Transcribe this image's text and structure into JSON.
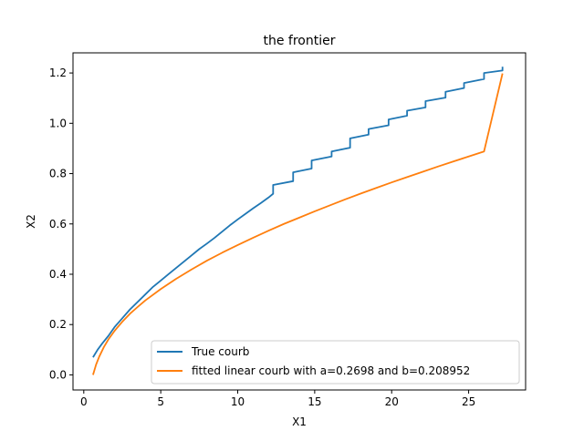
{
  "chart_data": {
    "type": "line",
    "title": "the frontier",
    "xlabel": "X1",
    "ylabel": "X2",
    "xlim": [
      -0.7,
      28.7
    ],
    "ylim": [
      -0.06,
      1.28
    ],
    "xticks": [
      0,
      5,
      10,
      15,
      20,
      25
    ],
    "yticks": [
      0.0,
      0.2,
      0.4,
      0.6,
      0.8,
      1.0,
      1.2
    ],
    "xtick_labels": [
      "0",
      "5",
      "10",
      "15",
      "20",
      "25"
    ],
    "ytick_labels": [
      "0.0",
      "0.2",
      "0.4",
      "0.6",
      "0.8",
      "1.0",
      "1.2"
    ],
    "grid": false,
    "legend_placement": "lower-right",
    "series": [
      {
        "name": "True courb",
        "color": "#1f77b4",
        "x": [
          0.6,
          0.9,
          1.2,
          1.6,
          2.0,
          2.5,
          3.0,
          3.5,
          4.0,
          4.5,
          5.0,
          5.5,
          6.0,
          6.5,
          7.0,
          7.5,
          8.0,
          8.5,
          9.0,
          9.5,
          10.0,
          10.5,
          11.0,
          11.5,
          12.0,
          12.3,
          12.3,
          13.6,
          13.6,
          14.8,
          14.8,
          16.1,
          16.1,
          17.3,
          17.3,
          18.5,
          18.5,
          19.8,
          19.8,
          21.0,
          21.0,
          22.2,
          22.2,
          23.5,
          23.5,
          24.7,
          24.7,
          26.0,
          26.0,
          27.2,
          27.2
        ],
        "y": [
          0.07,
          0.1,
          0.125,
          0.155,
          0.19,
          0.225,
          0.26,
          0.29,
          0.32,
          0.35,
          0.375,
          0.4,
          0.425,
          0.45,
          0.475,
          0.5,
          0.522,
          0.545,
          0.57,
          0.595,
          0.618,
          0.64,
          0.662,
          0.683,
          0.705,
          0.72,
          0.755,
          0.77,
          0.805,
          0.82,
          0.852,
          0.868,
          0.888,
          0.903,
          0.94,
          0.955,
          0.977,
          0.992,
          1.015,
          1.03,
          1.05,
          1.063,
          1.088,
          1.102,
          1.125,
          1.14,
          1.16,
          1.176,
          1.2,
          1.21,
          1.225
        ]
      },
      {
        "name": "fitted linear courb with a=0.2698 and b=0.208952",
        "color": "#ff7f0e",
        "fit": {
          "a": 0.2698,
          "b": 0.208952
        },
        "x": [
          0.6,
          0.8,
          1.0,
          1.3,
          1.6,
          2.0,
          2.5,
          3.0,
          3.5,
          4.0,
          5.0,
          6.0,
          7.0,
          8.0,
          9.0,
          10.0,
          11.0,
          12.0,
          13.0,
          14.0,
          15.0,
          16.0,
          17.0,
          18.0,
          19.0,
          20.0,
          21.0,
          22.0,
          23.0,
          24.0,
          25.0,
          26.0,
          27.2
        ],
        "y": [
          0.0,
          0.041,
          0.072,
          0.11,
          0.141,
          0.175,
          0.211,
          0.243,
          0.27,
          0.296,
          0.341,
          0.382,
          0.419,
          0.454,
          0.486,
          0.516,
          0.545,
          0.573,
          0.6,
          0.625,
          0.65,
          0.674,
          0.698,
          0.721,
          0.743,
          0.765,
          0.786,
          0.807,
          0.828,
          0.848,
          0.868,
          0.888,
          1.198
        ]
      }
    ]
  }
}
